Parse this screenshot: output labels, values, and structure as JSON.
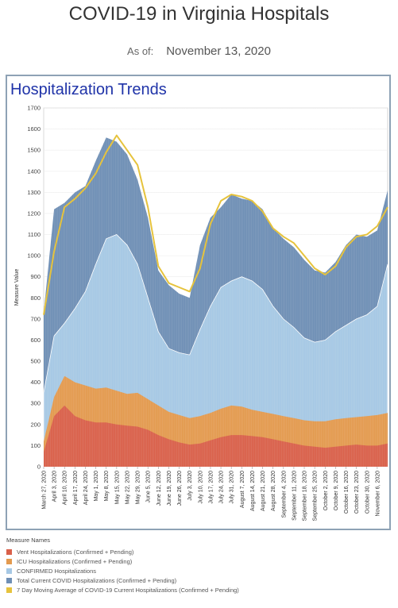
{
  "header": {
    "title": "COVID-19 in Virginia Hospitals",
    "as_of_label": "As of:",
    "as_of_date": "November 13, 2020"
  },
  "panel": {
    "title": "Hospitalization Trends"
  },
  "colors": {
    "vent": "#d9604a",
    "icu": "#e39a4f",
    "confirmed": "#a6c8e4",
    "total": "#6f8fb5",
    "avg": "#e6c33d"
  },
  "chart_data": {
    "type": "area",
    "title": "Hospitalization Trends",
    "ylabel": "Measure Value",
    "xlabel": "",
    "ylim": [
      0,
      1700
    ],
    "yticks": [
      0,
      100,
      200,
      300,
      400,
      500,
      600,
      700,
      800,
      900,
      1000,
      1100,
      1200,
      1300,
      1400,
      1500,
      1600,
      1700
    ],
    "x_tick_labels": [
      "March 27, 2020",
      "April 3, 2020",
      "April 10, 2020",
      "April 17, 2020",
      "April 24, 2020",
      "May 1, 2020",
      "May 8, 2020",
      "May 15, 2020",
      "May 22, 2020",
      "May 29, 2020",
      "June 5, 2020",
      "June 12, 2020",
      "June 19, 2020",
      "June 26, 2020",
      "July 3, 2020",
      "July 10, 2020",
      "July 17, 2020",
      "July 24, 2020",
      "July 31, 2020",
      "August 7, 2020",
      "August 14, 2020",
      "August 21, 2020",
      "August 28, 2020",
      "September 4, 2020",
      "September 11, 2020",
      "September 18, 2020",
      "September 25, 2020",
      "October 2, 2020",
      "October 9, 2020",
      "October 16, 2020",
      "October 23, 2020",
      "October 30, 2020",
      "November 6, 2020"
    ],
    "x": [
      "2020-03-27",
      "2020-04-03",
      "2020-04-10",
      "2020-04-17",
      "2020-04-24",
      "2020-05-01",
      "2020-05-08",
      "2020-05-15",
      "2020-05-22",
      "2020-05-29",
      "2020-06-05",
      "2020-06-12",
      "2020-06-19",
      "2020-06-26",
      "2020-07-03",
      "2020-07-10",
      "2020-07-17",
      "2020-07-24",
      "2020-07-31",
      "2020-08-07",
      "2020-08-14",
      "2020-08-21",
      "2020-08-28",
      "2020-09-04",
      "2020-09-11",
      "2020-09-18",
      "2020-09-25",
      "2020-10-02",
      "2020-10-09",
      "2020-10-16",
      "2020-10-23",
      "2020-10-30",
      "2020-11-06",
      "2020-11-13"
    ],
    "series": [
      {
        "name": "Total Current COVID Hospitalizations (Confirmed + Pending)",
        "values": [
          730,
          1220,
          1250,
          1300,
          1330,
          1450,
          1560,
          1540,
          1480,
          1360,
          1180,
          930,
          860,
          820,
          800,
          1050,
          1180,
          1230,
          1290,
          1270,
          1260,
          1220,
          1130,
          1080,
          1040,
          980,
          930,
          920,
          970,
          1050,
          1100,
          1090,
          1120,
          1310
        ]
      },
      {
        "name": "CONFIRMED Hospitalizations",
        "values": [
          350,
          620,
          680,
          750,
          830,
          960,
          1080,
          1100,
          1050,
          960,
          800,
          640,
          560,
          540,
          530,
          650,
          760,
          850,
          880,
          900,
          880,
          840,
          760,
          700,
          660,
          610,
          590,
          600,
          640,
          670,
          700,
          720,
          760,
          960
        ]
      },
      {
        "name": "ICU Hospitalizations (Confirmed + Pending)",
        "values": [
          120,
          330,
          430,
          400,
          385,
          370,
          375,
          360,
          345,
          350,
          320,
          290,
          260,
          245,
          230,
          240,
          255,
          275,
          290,
          285,
          270,
          260,
          250,
          240,
          230,
          220,
          215,
          215,
          225,
          230,
          235,
          240,
          245,
          255
        ]
      },
      {
        "name": "Vent Hospitalizations (Confirmed + Pending)",
        "values": [
          70,
          240,
          290,
          240,
          220,
          210,
          210,
          200,
          195,
          190,
          175,
          150,
          130,
          115,
          105,
          110,
          125,
          140,
          150,
          150,
          145,
          140,
          130,
          120,
          110,
          100,
          95,
          90,
          95,
          100,
          105,
          100,
          100,
          110
        ]
      },
      {
        "name": "7 Day Moving Average of COVID-19 Current Hospitalizations (Confirmed + Pending)",
        "values": [
          720,
          1020,
          1230,
          1270,
          1320,
          1390,
          1490,
          1570,
          1500,
          1430,
          1230,
          950,
          870,
          850,
          830,
          940,
          1150,
          1260,
          1290,
          1280,
          1260,
          1210,
          1130,
          1090,
          1060,
          1000,
          940,
          910,
          950,
          1040,
          1090,
          1100,
          1140,
          1230
        ]
      }
    ]
  },
  "legend": {
    "title": "Measure Names",
    "items": [
      {
        "label": "Vent Hospitalizations (Confirmed + Pending)",
        "color": "#d9604a"
      },
      {
        "label": "ICU Hospitalizations (Confirmed + Pending)",
        "color": "#e39a4f"
      },
      {
        "label": "CONFIRMED Hospitalizations",
        "color": "#a6c8e4"
      },
      {
        "label": "Total Current COVID Hospitalizations (Confirmed + Pending)",
        "color": "#6f8fb5"
      },
      {
        "label": "7 Day Moving Average of COVID-19 Current Hospitalizations (Confirmed + Pending)",
        "color": "#e6c33d"
      }
    ]
  }
}
